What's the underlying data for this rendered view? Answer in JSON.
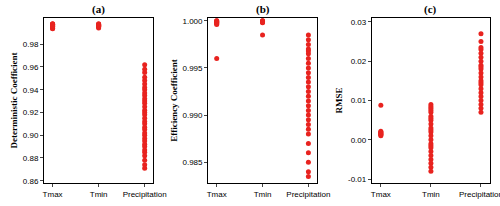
{
  "chart_data": [
    {
      "type": "scatter",
      "title": "(a)",
      "y_label": "Deterministic Coefficient",
      "categories": [
        "Tmax",
        "Tmin",
        "Precipitation"
      ],
      "values": [
        [
          0.9935,
          0.994,
          0.9945,
          0.995,
          0.9955,
          0.996,
          0.9962,
          0.9965,
          0.997,
          0.9972,
          0.9975,
          0.998,
          0.9978,
          0.9968,
          0.9958
        ],
        [
          0.9942,
          0.995,
          0.9955,
          0.996,
          0.9963,
          0.9966,
          0.997,
          0.9973,
          0.9976,
          0.998,
          0.9958,
          0.9967
        ],
        [
          0.962,
          0.958,
          0.955,
          0.951,
          0.948,
          0.945,
          0.942,
          0.94,
          0.937,
          0.935,
          0.932,
          0.93,
          0.928,
          0.925,
          0.922,
          0.92,
          0.918,
          0.915,
          0.912,
          0.91,
          0.907,
          0.905,
          0.902,
          0.9,
          0.897,
          0.895,
          0.892,
          0.89,
          0.887,
          0.885,
          0.882,
          0.878,
          0.874,
          0.871
        ]
      ],
      "color": "#e8231f",
      "marker": "circle",
      "grid": false,
      "ylim": [
        0.858,
        1.003
      ],
      "yticks": [
        0.86,
        0.88,
        {
          "value": 0.9,
          "label": "0.90"
        },
        0.92,
        0.94,
        0.96,
        0.98
      ]
    },
    {
      "type": "scatter",
      "title": "(b)",
      "y_label": "Efficiency Coefficient",
      "categories": [
        "Tmax",
        "Tmin",
        "Precipitation"
      ],
      "values": [
        [
          1.0,
          0.9999,
          0.9998,
          0.9999,
          1.0,
          0.9997,
          0.9998,
          0.9996,
          0.996
        ],
        [
          1.0,
          0.9999,
          1.0,
          0.9999,
          0.9998,
          0.9999,
          0.9985
        ],
        [
          0.9985,
          0.998,
          0.9975,
          0.997,
          0.9968,
          0.9965,
          0.996,
          0.9955,
          0.995,
          0.9945,
          0.994,
          0.9935,
          0.993,
          0.9925,
          0.992,
          0.9915,
          0.991,
          0.9905,
          0.99,
          0.9895,
          0.989,
          0.9885,
          0.988,
          0.987,
          0.986,
          0.985,
          0.984,
          0.9835
        ]
      ],
      "color": "#e8231f",
      "marker": "circle",
      "grid": false,
      "ylim": [
        0.9828,
        1.0003
      ],
      "yticks": [
        0.985,
        {
          "value": 0.99,
          "label": "0.990"
        },
        0.995,
        {
          "value": 1.0,
          "label": "1.000"
        }
      ]
    },
    {
      "type": "scatter",
      "title": "(c)",
      "y_label": "RMSE",
      "categories": [
        "Tmax",
        "Tmin",
        "Precipitation"
      ],
      "values": [
        [
          0.0088,
          0.0022,
          0.002,
          0.0018,
          0.0015,
          0.0012,
          0.001,
          0.0014,
          0.0017
        ],
        [
          0.009,
          0.008,
          0.007,
          0.006,
          0.005,
          0.004,
          0.003,
          0.002,
          0.001,
          0.0,
          -0.001,
          -0.002,
          -0.003,
          -0.004,
          -0.005,
          -0.006,
          -0.007,
          -0.008,
          0.0085,
          0.0075,
          0.0055,
          0.0025,
          -0.0015
        ],
        [
          0.027,
          0.025,
          0.023,
          0.022,
          0.021,
          0.02,
          0.019,
          0.018,
          0.017,
          0.016,
          0.015,
          0.014,
          0.013,
          0.012,
          0.011,
          0.01,
          0.009,
          0.008,
          0.007,
          0.0235,
          0.0185,
          0.0145
        ]
      ],
      "color": "#e8231f",
      "marker": "circle",
      "grid": false,
      "ylim": [
        -0.011,
        0.031
      ],
      "yticks": [
        -0.01,
        {
          "value": 0,
          "label": "0.00"
        },
        0.01,
        0.02,
        0.03
      ]
    }
  ]
}
